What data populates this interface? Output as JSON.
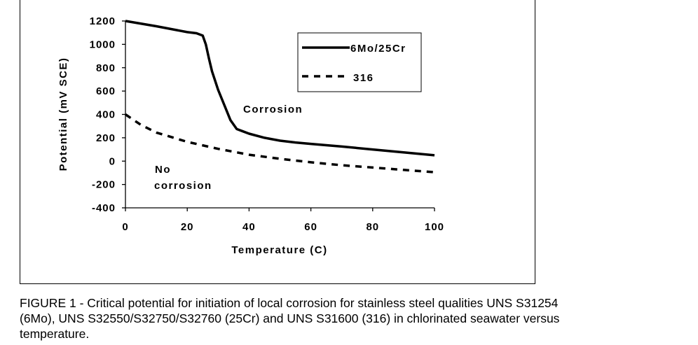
{
  "chart_data": {
    "type": "line",
    "xlabel": "Temperature (C)",
    "ylabel": "Potential (mV SCE)",
    "xlim": [
      0,
      100
    ],
    "ylim": [
      -400,
      1200
    ],
    "x_ticks": [
      "0",
      "20",
      "40",
      "60",
      "80",
      "100"
    ],
    "y_ticks": [
      "1200",
      "1000",
      "800",
      "600",
      "400",
      "200",
      "0",
      "-200",
      "-400"
    ],
    "grid": false,
    "legend_position": "top-right",
    "series": [
      {
        "name": "6Mo/25Cr",
        "style": "solid",
        "x": [
          0,
          10,
          20,
          23,
          25,
          26,
          27,
          28,
          30,
          32,
          34,
          36,
          38,
          40,
          45,
          50,
          55,
          60,
          70,
          80,
          90,
          100
        ],
        "y": [
          1200,
          1155,
          1105,
          1095,
          1075,
          1000,
          880,
          770,
          610,
          480,
          350,
          275,
          255,
          235,
          200,
          175,
          160,
          148,
          125,
          100,
          75,
          50
        ]
      },
      {
        "name": "316",
        "style": "dashed",
        "x": [
          0,
          5,
          10,
          20,
          30,
          40,
          50,
          60,
          70,
          80,
          90,
          100
        ],
        "y": [
          400,
          310,
          245,
          165,
          105,
          55,
          20,
          -10,
          -35,
          -55,
          -75,
          -95
        ]
      }
    ],
    "annotations": [
      "Corrosion",
      "No",
      "corrosion"
    ]
  },
  "caption": {
    "line1": "FIGURE 1 - Critical potential for initiation of local corrosion for stainless steel qualities UNS S31254",
    "line2": "(6Mo), UNS S32550/S32750/S32760 (25Cr) and UNS S31600 (316) in chlorinated seawater versus",
    "line3": "temperature."
  },
  "colors": {
    "line": "#000000",
    "background": "#ffffff"
  }
}
